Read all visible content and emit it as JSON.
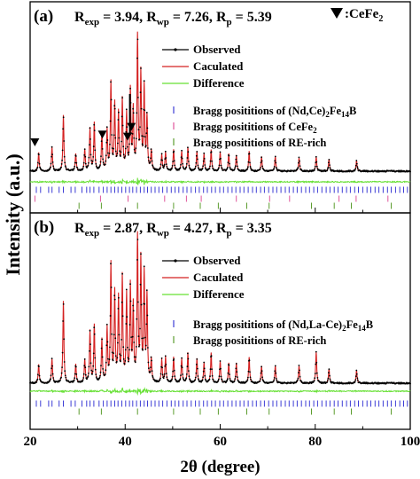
{
  "chart_data": [
    {
      "type": "line",
      "panel_label": "(a)",
      "stats": [
        {
          "base": "R",
          "sub": "exp",
          "value": "3.94"
        },
        {
          "base": "R",
          "sub": "wp",
          "value": "7.26"
        },
        {
          "base": "R",
          "sub": "p",
          "value": "5.39"
        }
      ],
      "marker_legend": {
        "symbol": "▼",
        "text": ":CeFe",
        "sub": "2"
      },
      "legend": [
        {
          "name": "Observed",
          "color": "#000000"
        },
        {
          "name": "Caculated",
          "color": "#d42020"
        },
        {
          "name": "Difference",
          "color": "#66e033"
        }
      ],
      "bragg_legend": [
        {
          "color": "#3d3dd6",
          "parts": [
            {
              "t": "Bragg posititions of (Nd,Ce)"
            },
            {
              "t": "2",
              "sub": true
            },
            {
              "t": "Fe"
            },
            {
              "t": "14",
              "sub": true
            },
            {
              "t": "B"
            }
          ]
        },
        {
          "color": "#e0559b",
          "parts": [
            {
              "t": "Bragg posititions of CeFe"
            },
            {
              "t": "2",
              "sub": true
            }
          ]
        },
        {
          "color": "#5c9c2e",
          "parts": [
            {
              "t": "Bragg posititions of RE-rich"
            }
          ]
        }
      ],
      "peaks": [
        {
          "x": 21.8,
          "h": 0.14
        },
        {
          "x": 24.6,
          "h": 0.18
        },
        {
          "x": 27.0,
          "h": 0.42
        },
        {
          "x": 29.6,
          "h": 0.13
        },
        {
          "x": 31.5,
          "h": 0.16
        },
        {
          "x": 32.6,
          "h": 0.32
        },
        {
          "x": 33.5,
          "h": 0.36
        },
        {
          "x": 35.1,
          "h": 0.28
        },
        {
          "x": 36.2,
          "h": 0.3
        },
        {
          "x": 37.0,
          "h": 0.66
        },
        {
          "x": 37.8,
          "h": 0.5
        },
        {
          "x": 38.6,
          "h": 0.43
        },
        {
          "x": 39.4,
          "h": 0.53
        },
        {
          "x": 40.3,
          "h": 0.42
        },
        {
          "x": 41.1,
          "h": 0.6
        },
        {
          "x": 41.7,
          "h": 0.45
        },
        {
          "x": 42.6,
          "h": 1.0
        },
        {
          "x": 43.3,
          "h": 0.72
        },
        {
          "x": 44.0,
          "h": 0.62
        },
        {
          "x": 44.6,
          "h": 0.4
        },
        {
          "x": 45.5,
          "h": 0.15
        },
        {
          "x": 47.7,
          "h": 0.12
        },
        {
          "x": 48.5,
          "h": 0.14
        },
        {
          "x": 50.2,
          "h": 0.16
        },
        {
          "x": 51.9,
          "h": 0.15
        },
        {
          "x": 53.2,
          "h": 0.18
        },
        {
          "x": 55.1,
          "h": 0.15
        },
        {
          "x": 56.6,
          "h": 0.13
        },
        {
          "x": 58.1,
          "h": 0.16
        },
        {
          "x": 60.0,
          "h": 0.14
        },
        {
          "x": 61.8,
          "h": 0.13
        },
        {
          "x": 63.4,
          "h": 0.12
        },
        {
          "x": 66.1,
          "h": 0.15
        },
        {
          "x": 68.7,
          "h": 0.11
        },
        {
          "x": 71.6,
          "h": 0.11
        },
        {
          "x": 76.6,
          "h": 0.1
        },
        {
          "x": 80.2,
          "h": 0.11
        },
        {
          "x": 82.9,
          "h": 0.09
        },
        {
          "x": 88.7,
          "h": 0.08
        }
      ],
      "cefe2_peaks": [
        21.0,
        35.2,
        40.5,
        41.3
      ],
      "arrow_x": 41.0,
      "bragg_positions": [
        [
          21.3,
          22.2,
          23.9,
          24.6,
          26.1,
          27.0,
          28.6,
          29.5,
          30.9,
          31.9,
          32.6,
          33.4,
          34.5,
          35.4,
          36.2,
          37.0,
          37.8,
          38.5,
          39.3,
          40.1,
          40.9,
          41.6,
          42.4,
          43.2,
          44.0,
          44.7,
          45.5,
          46.3,
          47.1,
          47.9,
          48.8,
          49.7,
          50.5,
          51.3,
          52.2,
          53.0,
          53.9,
          54.8,
          55.6,
          56.5,
          57.3,
          58.2,
          59.0,
          59.9,
          60.7,
          61.6,
          62.5,
          63.3,
          64.2,
          65.0,
          65.9,
          66.8,
          67.6,
          68.5,
          69.3,
          70.2,
          71.1,
          71.9,
          72.8,
          73.7,
          74.5,
          75.4,
          76.2,
          77.1,
          78.0,
          78.8,
          79.7,
          80.5,
          81.4,
          82.3,
          83.1,
          84.0,
          84.8,
          85.7,
          86.6,
          87.4,
          88.3,
          89.1,
          90.0,
          90.9,
          91.7,
          92.6,
          93.4,
          94.3,
          95.2,
          96.0,
          96.9,
          97.8,
          98.6,
          99.4
        ],
        [
          21.0,
          34.8,
          40.6,
          48.3,
          52.9,
          56.0,
          63.4,
          70.4,
          74.6,
          85.0,
          88.6,
          95.3
        ],
        [
          30.3,
          35.0,
          42.6,
          50.2,
          55.8,
          59.6,
          65.6,
          70.3,
          79.2,
          84.0,
          87.6,
          96.0
        ]
      ]
    },
    {
      "type": "line",
      "panel_label": "(b)",
      "stats": [
        {
          "base": "R",
          "sub": "exp",
          "value": "2.87"
        },
        {
          "base": "R",
          "sub": "wp",
          "value": "4.27"
        },
        {
          "base": "R",
          "sub": "p",
          "value": "3.35"
        }
      ],
      "legend": [
        {
          "name": "Observed",
          "color": "#000000"
        },
        {
          "name": "Caculated",
          "color": "#d42020"
        },
        {
          "name": "Difference",
          "color": "#66e033"
        }
      ],
      "bragg_legend": [
        {
          "color": "#3d3dd6",
          "parts": [
            {
              "t": "Bragg posititions of (Nd,La-Ce)"
            },
            {
              "t": "2",
              "sub": true
            },
            {
              "t": "Fe"
            },
            {
              "t": "14",
              "sub": true
            },
            {
              "t": "B"
            }
          ]
        },
        {
          "color": "#5c9c2e",
          "parts": [
            {
              "t": "Bragg posititions of RE-rich"
            }
          ]
        }
      ],
      "peaks": [
        {
          "x": 21.8,
          "h": 0.13
        },
        {
          "x": 24.6,
          "h": 0.17
        },
        {
          "x": 27.0,
          "h": 0.57
        },
        {
          "x": 29.6,
          "h": 0.13
        },
        {
          "x": 31.5,
          "h": 0.16
        },
        {
          "x": 32.6,
          "h": 0.36
        },
        {
          "x": 33.5,
          "h": 0.4
        },
        {
          "x": 35.1,
          "h": 0.3
        },
        {
          "x": 36.2,
          "h": 0.37
        },
        {
          "x": 37.0,
          "h": 0.82
        },
        {
          "x": 37.8,
          "h": 0.62
        },
        {
          "x": 38.6,
          "h": 0.58
        },
        {
          "x": 39.4,
          "h": 0.73
        },
        {
          "x": 40.3,
          "h": 0.6
        },
        {
          "x": 41.1,
          "h": 0.66
        },
        {
          "x": 41.7,
          "h": 0.52
        },
        {
          "x": 42.6,
          "h": 1.0
        },
        {
          "x": 43.3,
          "h": 0.84
        },
        {
          "x": 44.0,
          "h": 0.74
        },
        {
          "x": 44.6,
          "h": 0.6
        },
        {
          "x": 45.5,
          "h": 0.16
        },
        {
          "x": 47.7,
          "h": 0.16
        },
        {
          "x": 48.5,
          "h": 0.18
        },
        {
          "x": 50.2,
          "h": 0.18
        },
        {
          "x": 51.9,
          "h": 0.17
        },
        {
          "x": 53.2,
          "h": 0.21
        },
        {
          "x": 55.1,
          "h": 0.17
        },
        {
          "x": 56.6,
          "h": 0.14
        },
        {
          "x": 58.1,
          "h": 0.21
        },
        {
          "x": 60.0,
          "h": 0.15
        },
        {
          "x": 61.8,
          "h": 0.14
        },
        {
          "x": 63.4,
          "h": 0.14
        },
        {
          "x": 66.1,
          "h": 0.18
        },
        {
          "x": 68.7,
          "h": 0.12
        },
        {
          "x": 71.6,
          "h": 0.12
        },
        {
          "x": 76.6,
          "h": 0.12
        },
        {
          "x": 80.2,
          "h": 0.22
        },
        {
          "x": 82.9,
          "h": 0.1
        },
        {
          "x": 88.7,
          "h": 0.09
        }
      ],
      "bragg_positions": [
        [
          21.3,
          22.2,
          23.9,
          24.6,
          26.1,
          27.0,
          28.6,
          29.5,
          30.9,
          31.9,
          32.6,
          33.4,
          34.5,
          35.4,
          36.2,
          37.0,
          37.8,
          38.5,
          39.3,
          40.1,
          40.9,
          41.6,
          42.4,
          43.2,
          44.0,
          44.7,
          45.5,
          46.3,
          47.1,
          47.9,
          48.8,
          49.7,
          50.5,
          51.3,
          52.2,
          53.0,
          53.9,
          54.8,
          55.6,
          56.5,
          57.3,
          58.2,
          59.0,
          59.9,
          60.7,
          61.6,
          62.5,
          63.3,
          64.2,
          65.0,
          65.9,
          66.8,
          67.6,
          68.5,
          69.3,
          70.2,
          71.1,
          71.9,
          72.8,
          73.7,
          74.5,
          75.4,
          76.2,
          77.1,
          78.0,
          78.8,
          79.7,
          80.5,
          81.4,
          82.3,
          83.1,
          84.0,
          84.8,
          85.7,
          86.6,
          87.4,
          88.3,
          89.1,
          90.0,
          90.9,
          91.7,
          92.6,
          93.4,
          94.3,
          95.2,
          96.0,
          96.9,
          97.8,
          98.6,
          99.4
        ],
        [
          30.3,
          35.0,
          42.6,
          50.2,
          55.8,
          59.6,
          65.6,
          70.3,
          79.2,
          84.0,
          87.6,
          96.0
        ]
      ]
    }
  ],
  "axes": {
    "xlabel": "2θ (degree)",
    "ylabel": "Intensity (a.u.)",
    "xlim": [
      20,
      100
    ],
    "xticks": [
      "20",
      "40",
      "60",
      "80",
      "100"
    ],
    "x_minor_step": 10
  }
}
